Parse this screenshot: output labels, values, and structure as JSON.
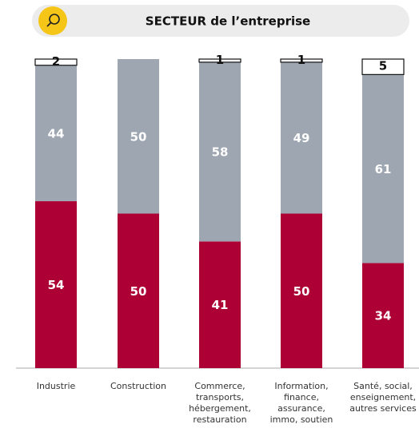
{
  "chart_data": {
    "type": "stacked_bar",
    "title": "SECTEUR de l’entreprise",
    "categories": [
      "Industrie",
      "Construction",
      "Commerce,\ntransports,\nhébergement,\nrestauration",
      "Information,\nfinance,\nassurance,\nimmo, soutien",
      "Santé, social,\nenseignement,\nautres services"
    ],
    "series": [
      {
        "color": "#ad0035",
        "values": [
          54,
          50,
          41,
          50,
          34
        ]
      },
      {
        "color": "#9ea6b1",
        "values": [
          44,
          50,
          58,
          49,
          61
        ]
      },
      {
        "color": "#ffffff",
        "values": [
          2,
          null,
          1,
          1,
          5
        ]
      }
    ],
    "ylim": [
      0,
      100
    ]
  }
}
